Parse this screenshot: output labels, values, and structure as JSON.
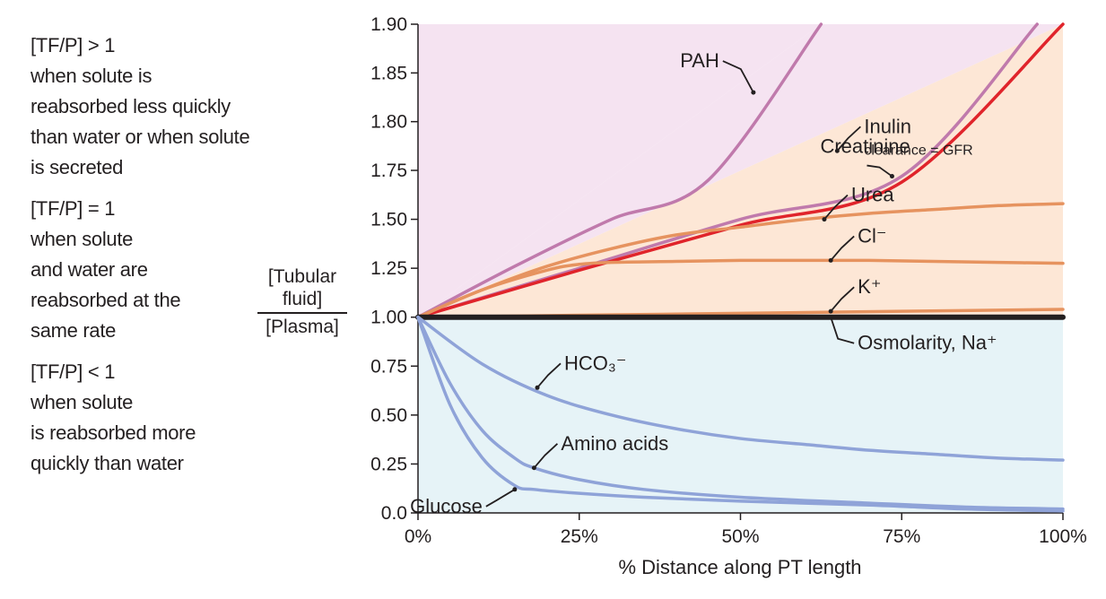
{
  "notes": [
    {
      "lines": [
        "[TF/P] > 1",
        "when solute is",
        "reabsorbed less quickly",
        "than water or when solute",
        "is secreted"
      ]
    },
    {
      "lines": [
        "[TF/P] = 1",
        "when solute",
        "and water are",
        "reabsorbed at the",
        "same rate"
      ]
    },
    {
      "lines": [
        "[TF/P] < 1",
        "when solute",
        "is reabsorbed more",
        "quickly than water"
      ]
    }
  ],
  "ylabel": {
    "numerator_line1": "[Tubular",
    "numerator_line2": "fluid]",
    "denominator": "[Plasma]"
  },
  "colors": {
    "upper_region": "#f5e3f1",
    "middle_region": "#fde7d6",
    "lower_region": "#e6f3f7",
    "pah": "#c07aac",
    "creatinine": "#c07aac",
    "inulin": "#e0242b",
    "orange": "#e6935f",
    "blue": "#8fa3d8",
    "baseline": "#231f20"
  },
  "chart_data": {
    "type": "line",
    "xlabel": "% Distance along PT length",
    "xlim": [
      0,
      100
    ],
    "ylim": [
      0,
      1.9
    ],
    "xticks": [
      0,
      25,
      50,
      75,
      100
    ],
    "xtick_labels": [
      "0%",
      "25%",
      "50%",
      "75%",
      "100%"
    ],
    "yticks": [
      0,
      0.25,
      0.5,
      0.75,
      1.0,
      1.25,
      1.5,
      1.75,
      1.8,
      1.85,
      1.9
    ],
    "ytick_labels": [
      "0.0",
      "0.25",
      "0.50",
      "0.75",
      "1.00",
      "1.25",
      "1.50",
      "1.75",
      "1.80",
      "1.85",
      "1.90"
    ],
    "grid": false,
    "series": [
      {
        "name": "PAH",
        "color_key": "pah",
        "width": 3.5,
        "x": [
          0,
          15,
          30,
          45,
          62.5
        ],
        "y": [
          1.0,
          1.26,
          1.5,
          1.7,
          1.9
        ]
      },
      {
        "name": "Creatinine",
        "color_key": "creatinine",
        "width": 3.5,
        "x": [
          0,
          25,
          50,
          75,
          96
        ],
        "y": [
          1.0,
          1.25,
          1.5,
          1.72,
          1.9
        ]
      },
      {
        "name": "Inulin",
        "sublabel": "clearance = GFR",
        "color_key": "inulin",
        "width": 3.5,
        "x": [
          0,
          25,
          50,
          75,
          100
        ],
        "y": [
          1.0,
          1.24,
          1.47,
          1.69,
          1.9
        ]
      },
      {
        "name": "Urea",
        "color_key": "orange",
        "width": 3.5,
        "x": [
          0,
          10,
          20,
          30,
          40,
          50,
          60,
          70,
          80,
          90,
          100
        ],
        "y": [
          1.0,
          1.14,
          1.26,
          1.35,
          1.42,
          1.46,
          1.5,
          1.53,
          1.55,
          1.57,
          1.58
        ]
      },
      {
        "name": "Cl⁻",
        "color_key": "orange",
        "width": 3.5,
        "x": [
          0,
          10,
          20,
          25,
          30,
          40,
          50,
          60,
          70,
          80,
          90,
          100
        ],
        "y": [
          1.0,
          1.14,
          1.24,
          1.27,
          1.28,
          1.285,
          1.29,
          1.29,
          1.29,
          1.285,
          1.28,
          1.275
        ]
      },
      {
        "name": "K⁺",
        "color_key": "orange",
        "width": 3.5,
        "x": [
          0,
          25,
          50,
          75,
          100
        ],
        "y": [
          1.0,
          1.01,
          1.02,
          1.03,
          1.04
        ]
      },
      {
        "name": "Osmolarity, Na⁺",
        "color_key": "baseline",
        "width": 6,
        "x": [
          0,
          100
        ],
        "y": [
          1.0,
          1.0
        ]
      },
      {
        "name": "HCO₃⁻",
        "color_key": "blue",
        "width": 3.5,
        "x": [
          0,
          10,
          20,
          30,
          40,
          50,
          60,
          70,
          80,
          90,
          100
        ],
        "y": [
          1.0,
          0.76,
          0.6,
          0.5,
          0.43,
          0.38,
          0.35,
          0.32,
          0.3,
          0.28,
          0.27
        ]
      },
      {
        "name": "Amino acids",
        "color_key": "blue",
        "width": 3.5,
        "x": [
          0,
          5,
          10,
          15,
          18,
          25,
          35,
          50,
          70,
          85,
          100
        ],
        "y": [
          1.0,
          0.66,
          0.42,
          0.28,
          0.23,
          0.17,
          0.12,
          0.08,
          0.05,
          0.03,
          0.02
        ]
      },
      {
        "name": "Glucose",
        "color_key": "blue",
        "width": 3.5,
        "x": [
          0,
          5,
          10,
          15,
          18,
          25,
          35,
          50,
          70,
          85,
          100
        ],
        "y": [
          1.0,
          0.55,
          0.28,
          0.14,
          0.12,
          0.1,
          0.08,
          0.06,
          0.04,
          0.02,
          0.01
        ]
      }
    ],
    "annotations": [
      {
        "text": "PAH",
        "anchor_x": 52,
        "anchor_y": 1.83,
        "side": "left"
      },
      {
        "text": "Creatinine",
        "anchor_x": 73.5,
        "anchor_y": 1.72,
        "side": "above"
      },
      {
        "text": "Inulin",
        "sub": "clearance = GFR",
        "anchor_x": 65,
        "anchor_y": 1.77,
        "side": "right"
      },
      {
        "text": "Urea",
        "anchor_x": 63,
        "anchor_y": 1.5,
        "side": "right"
      },
      {
        "text": "Cl⁻",
        "anchor_x": 64,
        "anchor_y": 1.29,
        "side": "right"
      },
      {
        "text": "K⁺",
        "anchor_x": 64,
        "anchor_y": 1.03,
        "side": "right"
      },
      {
        "text": "Osmolarity, Na⁺",
        "anchor_x": 64,
        "anchor_y": 1.0,
        "side": "right-below"
      },
      {
        "text": "HCO₃⁻",
        "anchor_x": 18.5,
        "anchor_y": 0.64,
        "side": "right"
      },
      {
        "text": "Amino acids",
        "anchor_x": 18,
        "anchor_y": 0.23,
        "side": "right"
      },
      {
        "text": "Glucose",
        "anchor_x": 15,
        "anchor_y": 0.12,
        "side": "left-below"
      }
    ]
  }
}
